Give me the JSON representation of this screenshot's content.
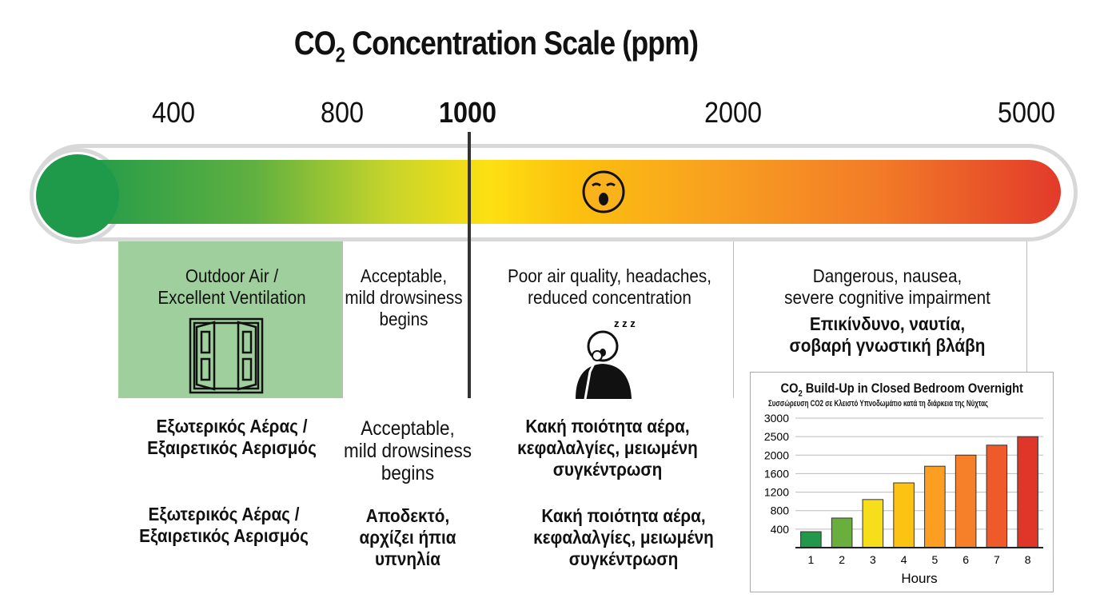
{
  "title": {
    "main": "CO",
    "sub": "2",
    "rest": " Concentration Scale (ppm)"
  },
  "scale_ticks": [
    "400",
    "800",
    "1000",
    "2000",
    "5000"
  ],
  "colors": {
    "good": "#1f9a4a",
    "acceptable": "#fde012",
    "poor": "#f8a020",
    "danger": "#e23a2a",
    "outdoor_box": "#9fcf9c"
  },
  "icons": {
    "bar_icon": "yawning-face-icon",
    "outdoor": "open-window-icon",
    "poor": "yawning-person-icon"
  },
  "zones": [
    {
      "en": [
        "Outdoor Air /",
        "Excellent Ventilation"
      ],
      "gr1": [
        "Εξωτερικός Αέρας /",
        "Εξαιρετικός Αερισμός"
      ],
      "gr2": [
        "Εξωτερικός Αέρας /",
        "Εξαιρετικός Αερισμός"
      ]
    },
    {
      "en": [
        "Acceptable,",
        "mild drowsiness",
        "begins"
      ],
      "gr1": [
        "Acceptable,",
        "mild drowsiness",
        "begins"
      ],
      "gr2": [
        "Αποδεκτό,",
        "αρχίζει ήπια",
        "υπνηλία"
      ]
    },
    {
      "en": [
        "Poor air quality, headaches,",
        "reduced concentration"
      ],
      "gr1": [
        "Κακή ποιότητα αέρα,",
        "κεφαλαλγίες, μειωμένη",
        "συγκέντρωση"
      ],
      "gr2": [
        "Κακή ποιότητα αέρα,",
        "κεφαλαλγίες, μειωμένη",
        "συγκέντρωση"
      ]
    },
    {
      "en": [
        "Dangerous, nausea,",
        "severe cognitive impairment"
      ],
      "gr_bold": [
        "Επικίνδυνο, ναυτία,",
        "σοβαρή γνωστική βλάβη"
      ]
    }
  ],
  "chart_data": {
    "type": "bar",
    "title": "CO2 Build-Up in Closed Bedroom Overnight",
    "title_parts": {
      "a": "CO",
      "sub": "2",
      "b": " Build-Up in Closed Bedroom Overnight"
    },
    "subtitle": "Συσσώρευση CO2 σε Κλειστό Υπνοδωμάτιο κατά τη διάρκεια της Νύχτας",
    "xlabel": "Hours",
    "ylabel": "",
    "categories": [
      "1",
      "2",
      "3",
      "4",
      "5",
      "6",
      "7",
      "8"
    ],
    "values": [
      345,
      640,
      1040,
      1400,
      1760,
      2000,
      2270,
      2500
    ],
    "yticks": [
      400,
      800,
      1200,
      1600,
      2000,
      2500,
      3000
    ],
    "ylim": [
      0,
      3000
    ],
    "grid": true,
    "bar_colors": [
      "#23974a",
      "#6aae3e",
      "#f6de1a",
      "#fcc312",
      "#fb9e22",
      "#f58029",
      "#ef5a2b",
      "#e0362a"
    ]
  }
}
